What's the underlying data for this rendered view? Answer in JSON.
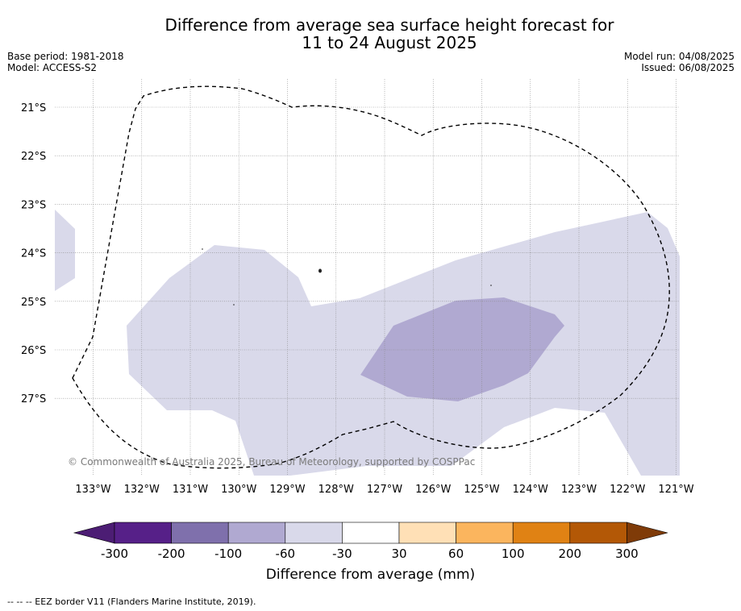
{
  "title": {
    "line1": "Difference from average sea surface height forecast for",
    "line2": "11 to 24 August 2025"
  },
  "meta": {
    "base_period": "Base period: 1981-2018",
    "model": "Model: ACCESS-S2",
    "model_run": "Model run: 04/08/2025",
    "issued": "Issued: 06/08/2025"
  },
  "map": {
    "copyright": "© Commonwealth of Australia 2025, Bureau of Meteorology, supported by COSPPac",
    "lat_labels": [
      "21°S",
      "22°S",
      "23°S",
      "24°S",
      "25°S",
      "26°S",
      "27°S"
    ],
    "lon_labels": [
      "133°W",
      "132°W",
      "131°W",
      "130°W",
      "129°W",
      "128°W",
      "127°W",
      "126°W",
      "125°W",
      "124°W",
      "123°W",
      "122°W",
      "121°W"
    ],
    "colors": {
      "m30_to_m60": "#d9d9ea",
      "m60_to_m100": "#b0a9d1",
      "eez_line": "#000000",
      "grid": "#888888"
    }
  },
  "colorbar": {
    "label": "Difference from average (mm)",
    "ticks": [
      "-300",
      "-200",
      "-100",
      "-60",
      "-30",
      "30",
      "60",
      "100",
      "200",
      "300"
    ],
    "colors": [
      "#4c1d74",
      "#562088",
      "#7f70ac",
      "#b0a9d1",
      "#d9d9ea",
      "#ffffff",
      "#ffe0b6",
      "#fbb55e",
      "#e08214",
      "#b35806",
      "#7f3b08"
    ]
  },
  "footnote": "--  --  -- EEZ border V11 (Flanders Marine Institute, 2019)."
}
